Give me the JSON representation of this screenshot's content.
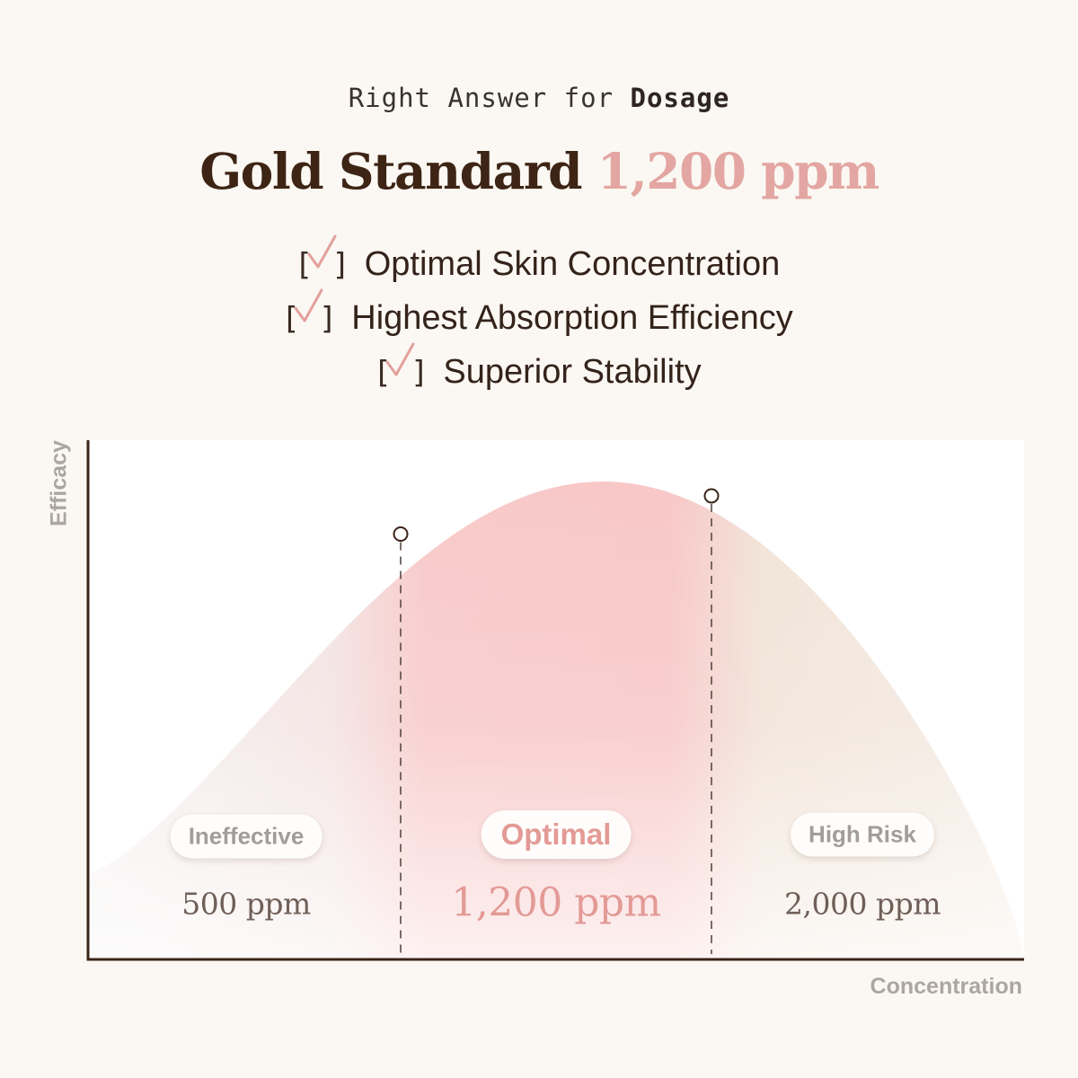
{
  "header": {
    "eyebrow_text": "Right Answer for ",
    "eyebrow_bold": "Dosage",
    "title_main": "Gold Standard",
    "title_accent": "1,200 ppm"
  },
  "checks": [
    {
      "box_left": "[",
      "box_right": "]",
      "label": "Optimal Skin Concentration"
    },
    {
      "box_left": "[",
      "box_right": "]",
      "label": "Highest Absorption Efficiency"
    },
    {
      "box_left": "[",
      "box_right": "]",
      "label": "Superior Stability"
    }
  ],
  "chart_data": {
    "type": "area",
    "xlabel": "Concentration",
    "ylabel": "Efficacy",
    "ticks_shown": false,
    "grid": false,
    "zones": [
      {
        "label": "Ineffective",
        "value_label": "500 ppm",
        "ppm": 500,
        "emphasis": false
      },
      {
        "label": "Optimal",
        "value_label": "1,200 ppm",
        "ppm": 1200,
        "emphasis": true
      },
      {
        "label": "High Risk",
        "value_label": "2,000 ppm",
        "ppm": 2000,
        "emphasis": false
      }
    ],
    "boundaries": [
      {
        "efficacy": 0.89
      },
      {
        "efficacy": 0.97
      }
    ],
    "curve_shape": "hump",
    "peak_efficacy": 1.0,
    "colors": {
      "axis": "#3a2418",
      "optimal": "#f7c3c4",
      "high_risk": "#efe0d2",
      "ineffective": "#f2f0ef",
      "accent_text": "#e39a95"
    }
  }
}
